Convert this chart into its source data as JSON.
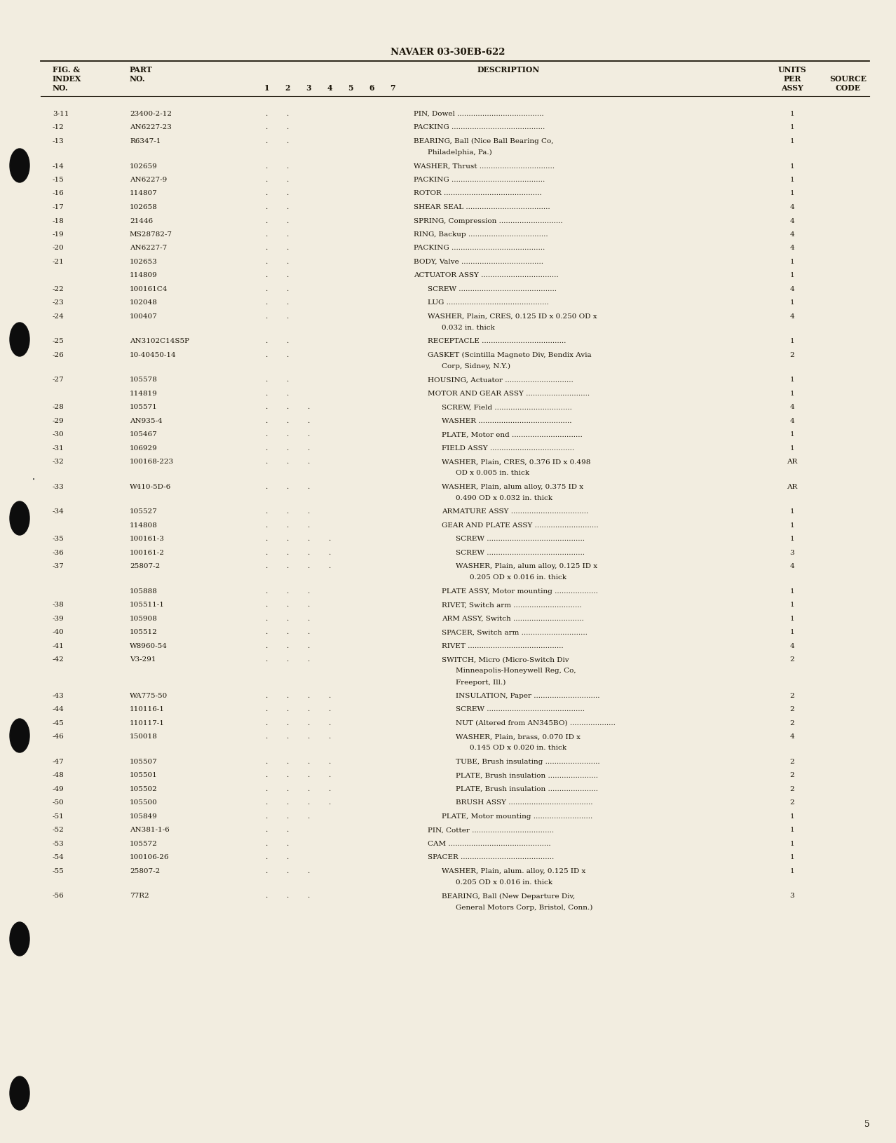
{
  "title": "NAVAER 03-30EB-622",
  "page_number": "5",
  "background_color": "#f2ede0",
  "rows": [
    {
      "index": "3-11",
      "part": "23400-2-12",
      "col1": "",
      "col2": ".",
      "col3": ".",
      "col4": "",
      "col5": "",
      "col6": "",
      "col7": "",
      "desc": "PIN, Dowel ......................................",
      "desc2": "",
      "desc3": "",
      "qty": "1",
      "indent": 0
    },
    {
      "index": "-12",
      "part": "AN6227-23",
      "col1": "",
      "col2": ".",
      "col3": ".",
      "col4": "",
      "col5": "",
      "col6": "",
      "col7": "",
      "desc": "PACKING .........................................",
      "desc2": "",
      "desc3": "",
      "qty": "1",
      "indent": 0
    },
    {
      "index": "-13",
      "part": "R6347-1",
      "col1": "",
      "col2": ".",
      "col3": ".",
      "col4": "",
      "col5": "",
      "col6": "",
      "col7": "",
      "desc": "BEARING, Ball (Nice Ball Bearing Co,",
      "desc2": "Philadelphia, Pa.)",
      "desc3": "",
      "qty": "1",
      "indent": 0
    },
    {
      "index": "-14",
      "part": "102659",
      "col1": "",
      "col2": ".",
      "col3": ".",
      "col4": "",
      "col5": "",
      "col6": "",
      "col7": "",
      "desc": "WASHER, Thrust .................................",
      "desc2": "",
      "desc3": "",
      "qty": "1",
      "indent": 0
    },
    {
      "index": "-15",
      "part": "AN6227-9",
      "col1": "",
      "col2": ".",
      "col3": ".",
      "col4": "",
      "col5": "",
      "col6": "",
      "col7": "",
      "desc": "PACKING .........................................",
      "desc2": "",
      "desc3": "",
      "qty": "1",
      "indent": 0
    },
    {
      "index": "-16",
      "part": "114807",
      "col1": "",
      "col2": ".",
      "col3": ".",
      "col4": "",
      "col5": "",
      "col6": "",
      "col7": "",
      "desc": "ROTOR ...........................................",
      "desc2": "",
      "desc3": "",
      "qty": "1",
      "indent": 0
    },
    {
      "index": "-17",
      "part": "102658",
      "col1": "",
      "col2": ".",
      "col3": ".",
      "col4": "",
      "col5": "",
      "col6": "",
      "col7": "",
      "desc": "SHEAR SEAL .....................................",
      "desc2": "",
      "desc3": "",
      "qty": "4",
      "indent": 0
    },
    {
      "index": "-18",
      "part": "21446",
      "col1": "",
      "col2": ".",
      "col3": ".",
      "col4": "",
      "col5": "",
      "col6": "",
      "col7": "",
      "desc": "SPRING, Compression ............................",
      "desc2": "",
      "desc3": "",
      "qty": "4",
      "indent": 0
    },
    {
      "index": "-19",
      "part": "MS28782-7",
      "col1": "",
      "col2": ".",
      "col3": ".",
      "col4": "",
      "col5": "",
      "col6": "",
      "col7": "",
      "desc": "RING, Backup ...................................",
      "desc2": "",
      "desc3": "",
      "qty": "4",
      "indent": 0
    },
    {
      "index": "-20",
      "part": "AN6227-7",
      "col1": "",
      "col2": ".",
      "col3": ".",
      "col4": "",
      "col5": "",
      "col6": "",
      "col7": "",
      "desc": "PACKING .........................................",
      "desc2": "",
      "desc3": "",
      "qty": "4",
      "indent": 0
    },
    {
      "index": "-21",
      "part": "102653",
      "col1": "",
      "col2": ".",
      "col3": ".",
      "col4": "",
      "col5": "",
      "col6": "",
      "col7": "",
      "desc": "BODY, Valve ....................................",
      "desc2": "",
      "desc3": "",
      "qty": "1",
      "indent": 0
    },
    {
      "index": "",
      "part": "114809",
      "col1": "",
      "col2": ".",
      "col3": "",
      "col4": "",
      "col5": "",
      "col6": "",
      "col7": "",
      "desc": "ACTUATOR ASSY ..................................",
      "desc2": "",
      "desc3": "",
      "qty": "1",
      "indent": 0
    },
    {
      "index": "-22",
      "part": "100161C4",
      "col1": "",
      "col2": ".",
      "col3": ".",
      "col4": "",
      "col5": "",
      "col6": "",
      "col7": "",
      "desc": "SCREW ...........................................",
      "desc2": "",
      "desc3": "",
      "qty": "4",
      "indent": 1
    },
    {
      "index": "-23",
      "part": "102048",
      "col1": "",
      "col2": ".",
      "col3": ".",
      "col4": "",
      "col5": "",
      "col6": "",
      "col7": "",
      "desc": "LUG .............................................",
      "desc2": "",
      "desc3": "",
      "qty": "1",
      "indent": 1
    },
    {
      "index": "-24",
      "part": "100407",
      "col1": "",
      "col2": ".",
      "col3": ".",
      "col4": "",
      "col5": "",
      "col6": "",
      "col7": "",
      "desc": "WASHER, Plain, CRES, 0.125 ID x 0.250 OD x",
      "desc2": "0.032 in. thick",
      "desc3": "",
      "qty": "4",
      "indent": 1
    },
    {
      "index": "-25",
      "part": "AN3102C14S5P",
      "col1": "",
      "col2": ".",
      "col3": ".",
      "col4": "",
      "col5": "",
      "col6": "",
      "col7": "",
      "desc": "RECEPTACLE .....................................",
      "desc2": "",
      "desc3": "",
      "qty": "1",
      "indent": 1
    },
    {
      "index": "-26",
      "part": "10-40450-14",
      "col1": "",
      "col2": ".",
      "col3": ".",
      "col4": "",
      "col5": "",
      "col6": "",
      "col7": "",
      "desc": "GASKET (Scintilla Magneto Div, Bendix Avia",
      "desc2": "Corp, Sidney, N.Y.)",
      "desc3": "",
      "qty": "2",
      "indent": 1
    },
    {
      "index": "-27",
      "part": "105578",
      "col1": "",
      "col2": ".",
      "col3": ".",
      "col4": "",
      "col5": "",
      "col6": "",
      "col7": "",
      "desc": "HOUSING, Actuator ..............................",
      "desc2": "",
      "desc3": "",
      "qty": "1",
      "indent": 1
    },
    {
      "index": "",
      "part": "114819",
      "col1": "",
      "col2": ".",
      "col3": ".",
      "col4": "",
      "col5": "",
      "col6": "",
      "col7": "",
      "desc": "MOTOR AND GEAR ASSY ............................",
      "desc2": "",
      "desc3": "",
      "qty": "1",
      "indent": 1
    },
    {
      "index": "-28",
      "part": "105571",
      "col1": "",
      "col2": ".",
      "col3": ".",
      "col4": "",
      "col5": "",
      "col6": "",
      "col7": "",
      "desc": "SCREW, Field ..................................",
      "desc2": "",
      "desc3": "",
      "qty": "4",
      "indent": 2
    },
    {
      "index": "-29",
      "part": "AN935-4",
      "col1": "",
      "col2": ".",
      "col3": ".",
      "col4": "",
      "col5": "",
      "col6": "",
      "col7": "",
      "desc": "WASHER .........................................",
      "desc2": "",
      "desc3": "",
      "qty": "4",
      "indent": 2
    },
    {
      "index": "-30",
      "part": "105467",
      "col1": "",
      "col2": ".",
      "col3": ".",
      "col4": "",
      "col5": "",
      "col6": "",
      "col7": "",
      "desc": "PLATE, Motor end ...............................",
      "desc2": "",
      "desc3": "",
      "qty": "1",
      "indent": 2
    },
    {
      "index": "-31",
      "part": "106929",
      "col1": "",
      "col2": ".",
      "col3": ".",
      "col4": "",
      "col5": "",
      "col6": "",
      "col7": "",
      "desc": "FIELD ASSY .....................................",
      "desc2": "",
      "desc3": "",
      "qty": "1",
      "indent": 2
    },
    {
      "index": "-32",
      "part": "100168-223",
      "col1": "",
      "col2": ".",
      "col3": ".",
      "col4": "",
      "col5": "",
      "col6": "",
      "col7": "",
      "desc": "WASHER, Plain, CRES, 0.376 ID x 0.498",
      "desc2": "OD x 0.005 in. thick",
      "desc3": "",
      "qty": "AR",
      "indent": 2
    },
    {
      "index": "-33",
      "part": "W410-5D-6",
      "col1": "",
      "col2": ".",
      "col3": ".",
      "col4": "",
      "col5": "",
      "col6": "",
      "col7": "",
      "desc": "WASHER, Plain, alum alloy, 0.375 ID x",
      "desc2": "0.490 OD x 0.032 in. thick",
      "desc3": "",
      "qty": "AR",
      "indent": 2
    },
    {
      "index": "-34",
      "part": "105527",
      "col1": "",
      "col2": ".",
      "col3": ".",
      "col4": "",
      "col5": "",
      "col6": "",
      "col7": "",
      "desc": "ARMATURE ASSY ..................................",
      "desc2": "",
      "desc3": "",
      "qty": "1",
      "indent": 2
    },
    {
      "index": "",
      "part": "114808",
      "col1": "",
      "col2": ".",
      "col3": ".",
      "col4": "",
      "col5": "",
      "col6": "",
      "col7": "",
      "desc": "GEAR AND PLATE ASSY ............................",
      "desc2": "",
      "desc3": "",
      "qty": "1",
      "indent": 2
    },
    {
      "index": "-35",
      "part": "100161-3",
      "col1": "",
      "col2": ".",
      "col3": ".",
      "col4": ".",
      "col5": "",
      "col6": "",
      "col7": "",
      "desc": "SCREW ...........................................",
      "desc2": "",
      "desc3": "",
      "qty": "1",
      "indent": 3
    },
    {
      "index": "-36",
      "part": "100161-2",
      "col1": "",
      "col2": ".",
      "col3": ".",
      "col4": ".",
      "col5": "",
      "col6": "",
      "col7": "",
      "desc": "SCREW ...........................................",
      "desc2": "",
      "desc3": "",
      "qty": "3",
      "indent": 3
    },
    {
      "index": "-37",
      "part": "25807-2",
      "col1": "",
      "col2": ".",
      "col3": ".",
      "col4": ".",
      "col5": "",
      "col6": "",
      "col7": "",
      "desc": "WASHER, Plain, alum alloy, 0.125 ID x",
      "desc2": "0.205 OD x 0.016 in. thick",
      "desc3": "",
      "qty": "4",
      "indent": 3
    },
    {
      "index": "",
      "part": "105888",
      "col1": "",
      "col2": ".",
      "col3": ".",
      "col4": "",
      "col5": "",
      "col6": "",
      "col7": "",
      "desc": "PLATE ASSY, Motor mounting ...................",
      "desc2": "",
      "desc3": "",
      "qty": "1",
      "indent": 2
    },
    {
      "index": "-38",
      "part": "105511-1",
      "col1": "",
      "col2": ".",
      "col3": ".",
      "col4": "",
      "col5": "",
      "col6": "",
      "col7": "",
      "desc": "RIVET, Switch arm ..............................",
      "desc2": "",
      "desc3": "",
      "qty": "1",
      "indent": 2
    },
    {
      "index": "-39",
      "part": "105908",
      "col1": "",
      "col2": ".",
      "col3": ".",
      "col4": "",
      "col5": "",
      "col6": "",
      "col7": "",
      "desc": "ARM ASSY, Switch ...............................",
      "desc2": "",
      "desc3": "",
      "qty": "1",
      "indent": 2
    },
    {
      "index": "-40",
      "part": "105512",
      "col1": "",
      "col2": ".",
      "col3": ".",
      "col4": "",
      "col5": "",
      "col6": "",
      "col7": "",
      "desc": "SPACER, Switch arm .............................",
      "desc2": "",
      "desc3": "",
      "qty": "1",
      "indent": 2
    },
    {
      "index": "-41",
      "part": "W8960-54",
      "col1": "",
      "col2": ".",
      "col3": ".",
      "col4": "",
      "col5": "",
      "col6": "",
      "col7": "",
      "desc": "RIVET ..........................................",
      "desc2": "",
      "desc3": "",
      "qty": "4",
      "indent": 2
    },
    {
      "index": "-42",
      "part": "V3-291",
      "col1": "",
      "col2": ".",
      "col3": ".",
      "col4": "",
      "col5": "",
      "col6": "",
      "col7": "",
      "desc": "SWITCH, Micro (Micro-Switch Div",
      "desc2": "Minneapolis-Honeywell Reg, Co,",
      "desc3": "Freeport, Ill.)",
      "qty": "2",
      "indent": 2
    },
    {
      "index": "-43",
      "part": "WA775-50",
      "col1": "",
      "col2": ".",
      "col3": ".",
      "col4": ".",
      "col5": "",
      "col6": "",
      "col7": "",
      "desc": "INSULATION, Paper .............................",
      "desc2": "",
      "desc3": "",
      "qty": "2",
      "indent": 3
    },
    {
      "index": "-44",
      "part": "110116-1",
      "col1": "",
      "col2": ".",
      "col3": ".",
      "col4": ".",
      "col5": "",
      "col6": "",
      "col7": "",
      "desc": "SCREW ...........................................",
      "desc2": "",
      "desc3": "",
      "qty": "2",
      "indent": 3
    },
    {
      "index": "-45",
      "part": "110117-1",
      "col1": "",
      "col2": ".",
      "col3": ".",
      "col4": ".",
      "col5": "",
      "col6": "",
      "col7": "",
      "desc": "NUT (Altered from AN345BO) ....................",
      "desc2": "",
      "desc3": "",
      "qty": "2",
      "indent": 3
    },
    {
      "index": "-46",
      "part": "150018",
      "col1": "",
      "col2": ".",
      "col3": ".",
      "col4": ".",
      "col5": "",
      "col6": "",
      "col7": "",
      "desc": "WASHER, Plain, brass, 0.070 ID x",
      "desc2": "0.145 OD x 0.020 in. thick",
      "desc3": "",
      "qty": "4",
      "indent": 3
    },
    {
      "index": "-47",
      "part": "105507",
      "col1": "",
      "col2": ".",
      "col3": ".",
      "col4": ".",
      "col5": "",
      "col6": "",
      "col7": "",
      "desc": "TUBE, Brush insulating ........................",
      "desc2": "",
      "desc3": "",
      "qty": "2",
      "indent": 3
    },
    {
      "index": "-48",
      "part": "105501",
      "col1": "",
      "col2": ".",
      "col3": ".",
      "col4": ".",
      "col5": "",
      "col6": "",
      "col7": "",
      "desc": "PLATE, Brush insulation ......................",
      "desc2": "",
      "desc3": "",
      "qty": "2",
      "indent": 3
    },
    {
      "index": "-49",
      "part": "105502",
      "col1": "",
      "col2": ".",
      "col3": ".",
      "col4": ".",
      "col5": "",
      "col6": "",
      "col7": "",
      "desc": "PLATE, Brush insulation ......................",
      "desc2": "",
      "desc3": "",
      "qty": "2",
      "indent": 3
    },
    {
      "index": "-50",
      "part": "105500",
      "col1": "",
      "col2": ".",
      "col3": ".",
      "col4": ".",
      "col5": "",
      "col6": "",
      "col7": "",
      "desc": "BRUSH ASSY .....................................",
      "desc2": "",
      "desc3": "",
      "qty": "2",
      "indent": 3
    },
    {
      "index": "-51",
      "part": "105849",
      "col1": "",
      "col2": ".",
      "col3": ".",
      "col4": "",
      "col5": "",
      "col6": "",
      "col7": "",
      "desc": "PLATE, Motor mounting ..........................",
      "desc2": "",
      "desc3": "",
      "qty": "1",
      "indent": 2
    },
    {
      "index": "-52",
      "part": "AN381-1-6",
      "col1": "",
      "col2": ".",
      "col3": ".",
      "col4": "",
      "col5": "",
      "col6": "",
      "col7": "",
      "desc": "PIN, Cotter ....................................",
      "desc2": "",
      "desc3": "",
      "qty": "1",
      "indent": 1
    },
    {
      "index": "-53",
      "part": "105572",
      "col1": "",
      "col2": ".",
      "col3": ".",
      "col4": "",
      "col5": "",
      "col6": "",
      "col7": "",
      "desc": "CAM .............................................",
      "desc2": "",
      "desc3": "",
      "qty": "1",
      "indent": 1
    },
    {
      "index": "-54",
      "part": "100106-26",
      "col1": "",
      "col2": ".",
      "col3": ".",
      "col4": "",
      "col5": "",
      "col6": "",
      "col7": "",
      "desc": "SPACER .........................................",
      "desc2": "",
      "desc3": "",
      "qty": "1",
      "indent": 1
    },
    {
      "index": "-55",
      "part": "25807-2",
      "col1": "",
      "col2": ".",
      "col3": ".",
      "col4": ".",
      "col5": "",
      "col6": "",
      "col7": "",
      "desc": "WASHER, Plain, alum. alloy, 0.125 ID x",
      "desc2": "0.205 OD x 0.016 in. thick",
      "desc3": "",
      "qty": "1",
      "indent": 2
    },
    {
      "index": "-56",
      "part": "77R2",
      "col1": "",
      "col2": ".",
      "col3": ".",
      "col4": ".",
      "col5": "",
      "col6": "",
      "col7": "",
      "desc": "BEARING, Ball (New Departure Div,",
      "desc2": "General Motors Corp, Bristol, Conn.)",
      "desc3": "",
      "qty": "3",
      "indent": 2
    }
  ]
}
